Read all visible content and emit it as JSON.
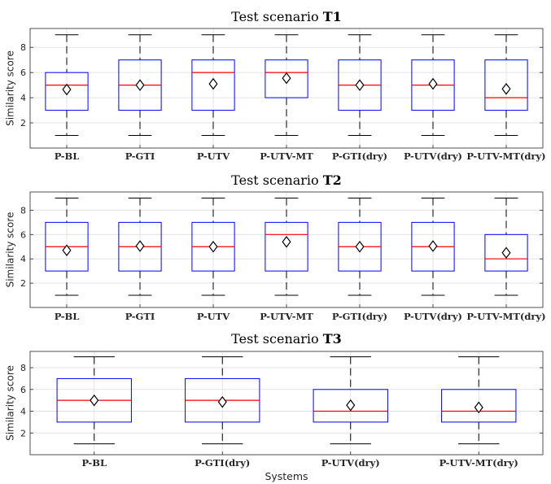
{
  "chart_data": [
    {
      "type": "box",
      "title": "Test scenario ",
      "title_bold": "T1",
      "ylabel": "Similarity score",
      "xlabel": "",
      "ylim": [
        0,
        9.5
      ],
      "yticks": [
        2,
        4,
        6,
        8
      ],
      "grid": true,
      "categories": [
        "P-BL",
        "P-GTI",
        "P-UTV",
        "P-UTV-MT",
        "P-GTI(dry)",
        "P-UTV(dry)",
        "P-UTV-MT(dry)"
      ],
      "boxes": [
        {
          "min": 1,
          "q1": 3,
          "median": 5,
          "q3": 6,
          "max": 9,
          "mean": 4.65
        },
        {
          "min": 1,
          "q1": 3,
          "median": 5,
          "q3": 7,
          "max": 9,
          "mean": 5.0
        },
        {
          "min": 1,
          "q1": 3,
          "median": 6,
          "q3": 7,
          "max": 9,
          "mean": 5.1
        },
        {
          "min": 1,
          "q1": 4,
          "median": 6,
          "q3": 7,
          "max": 9,
          "mean": 5.55
        },
        {
          "min": 1,
          "q1": 3,
          "median": 5,
          "q3": 7,
          "max": 9,
          "mean": 5.0
        },
        {
          "min": 1,
          "q1": 3,
          "median": 5,
          "q3": 7,
          "max": 9,
          "mean": 5.1
        },
        {
          "min": 1,
          "q1": 3,
          "median": 4,
          "q3": 7,
          "max": 9,
          "mean": 4.7
        }
      ]
    },
    {
      "type": "box",
      "title": "Test scenario ",
      "title_bold": "T2",
      "ylabel": "Similarity score",
      "xlabel": "",
      "ylim": [
        0,
        9.5
      ],
      "yticks": [
        2,
        4,
        6,
        8
      ],
      "grid": true,
      "categories": [
        "P-BL",
        "P-GTI",
        "P-UTV",
        "P-UTV-MT",
        "P-GTI(dry)",
        "P-UTV(dry)",
        "P-UTV-MT(dry)"
      ],
      "boxes": [
        {
          "min": 1,
          "q1": 3,
          "median": 5,
          "q3": 7,
          "max": 9,
          "mean": 4.7
        },
        {
          "min": 1,
          "q1": 3,
          "median": 5,
          "q3": 7,
          "max": 9,
          "mean": 5.05
        },
        {
          "min": 1,
          "q1": 3,
          "median": 5,
          "q3": 7,
          "max": 9,
          "mean": 5.0
        },
        {
          "min": 1,
          "q1": 3,
          "median": 6,
          "q3": 7,
          "max": 9,
          "mean": 5.4
        },
        {
          "min": 1,
          "q1": 3,
          "median": 5,
          "q3": 7,
          "max": 9,
          "mean": 5.0
        },
        {
          "min": 1,
          "q1": 3,
          "median": 5,
          "q3": 7,
          "max": 9,
          "mean": 5.05
        },
        {
          "min": 1,
          "q1": 3,
          "median": 4,
          "q3": 6,
          "max": 9,
          "mean": 4.5
        }
      ]
    },
    {
      "type": "box",
      "title": "Test scenario ",
      "title_bold": "T3",
      "ylabel": "Similarity score",
      "xlabel": "Systems",
      "ylim": [
        0,
        9.5
      ],
      "yticks": [
        2,
        4,
        6,
        8
      ],
      "grid": true,
      "categories": [
        "P-BL",
        "P-GTI(dry)",
        "P-UTV(dry)",
        "P-UTV-MT(dry)"
      ],
      "boxes": [
        {
          "min": 1,
          "q1": 3,
          "median": 5,
          "q3": 7,
          "max": 9,
          "mean": 5.0
        },
        {
          "min": 1,
          "q1": 3,
          "median": 5,
          "q3": 7,
          "max": 9,
          "mean": 4.85
        },
        {
          "min": 1,
          "q1": 3,
          "median": 4,
          "q3": 6,
          "max": 9,
          "mean": 4.55
        },
        {
          "min": 1,
          "q1": 3,
          "median": 4,
          "q3": 6,
          "max": 9,
          "mean": 4.35
        }
      ]
    }
  ],
  "colors": {
    "box": "#0000ff",
    "median": "#ff0000",
    "whisker": "#000000",
    "mean_marker": "#000000",
    "grid": "#e3e3e3",
    "axes": "#262626"
  }
}
